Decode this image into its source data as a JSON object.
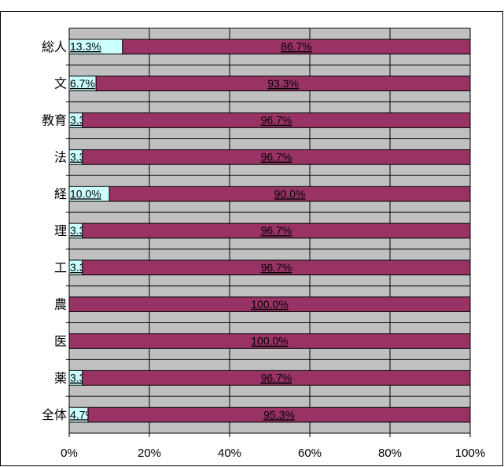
{
  "chart_data": {
    "type": "bar",
    "orientation": "horizontal",
    "stacked": true,
    "categories": [
      "総人",
      "文",
      "教育",
      "法",
      "経",
      "理",
      "工",
      "農",
      "医",
      "薬",
      "全体"
    ],
    "series": [
      {
        "values": [
          13.3,
          6.7,
          3.3,
          3.3,
          10.0,
          3.3,
          3.3,
          0.0,
          0.0,
          3.3,
          4.7
        ],
        "labels": [
          "13.3%",
          "6.7%",
          "3.3%",
          "3.3%",
          "10.0%",
          "3.3%",
          "3.3%",
          "",
          "",
          "3.3%",
          "4.7%"
        ]
      },
      {
        "values": [
          86.7,
          93.3,
          96.7,
          96.7,
          90.0,
          96.7,
          96.7,
          100.0,
          100.0,
          96.7,
          95.3
        ],
        "labels": [
          "86.7%",
          "93.3%",
          "96.7%",
          "96.7%",
          "90.0%",
          "96.7%",
          "96.7%",
          "100.0%",
          "100.0%",
          "96.7%",
          "95.3%"
        ]
      }
    ],
    "xlim": [
      0,
      100
    ],
    "x_ticks": [
      "0%",
      "20%",
      "40%",
      "60%",
      "80%",
      "100%"
    ],
    "grid": true,
    "colors": {
      "series1": "#ccffff",
      "series2": "#993366",
      "plot_bg": "#c0c0c0",
      "grid": "#000000"
    }
  }
}
